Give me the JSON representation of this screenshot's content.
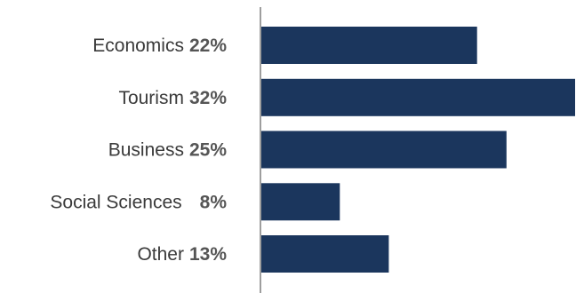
{
  "chart_data": {
    "type": "bar",
    "orientation": "horizontal",
    "categories": [
      "Economics",
      "Tourism",
      "Business",
      "Social Sciences",
      "Other"
    ],
    "values": [
      22,
      32,
      25,
      8,
      13
    ],
    "value_labels": [
      "22%",
      "32%",
      "25%",
      "8%",
      "13%"
    ],
    "xlim": [
      0,
      32
    ],
    "title": "",
    "xlabel": "",
    "ylabel": "",
    "grid": false,
    "legend": "none",
    "bar_color": "#1b365d",
    "axis_color": "#7f7f7f"
  }
}
